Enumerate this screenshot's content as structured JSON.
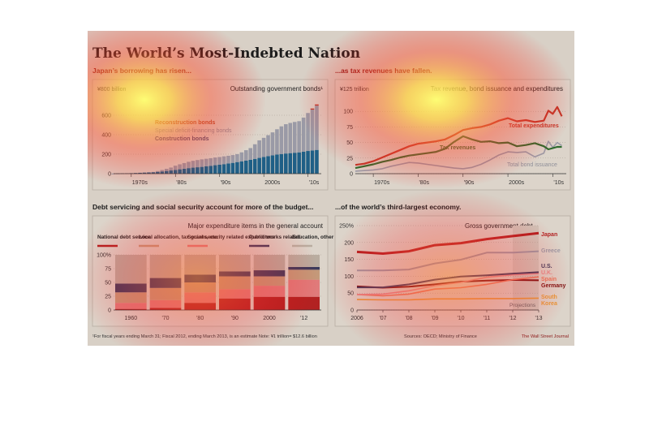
{
  "title": "The World’s Most-Indebted Nation",
  "footer": {
    "note": "¹For fiscal years ending March 31; Fiscal 2012, ending March 2013, is an estimate   Note: ¥1 trillion= $12.6 billion",
    "sources": "Sources: OECD; Ministry of Finance",
    "credit": "The Wall Street Journal"
  },
  "chart_data": [
    {
      "id": "borrowing",
      "type": "area",
      "heading": "Japan’s borrowing has risen...",
      "title": "Outstanding government bonds¹",
      "unit_label": "¥800 billion",
      "ylim": [
        0,
        800
      ],
      "yticks": [
        0,
        200,
        400,
        600
      ],
      "xlim": [
        1966,
        2013
      ],
      "xtick_labels": [
        {
          "x": 1970,
          "label": "1970s"
        },
        {
          "x": 1980,
          "label": "'80s"
        },
        {
          "x": 1990,
          "label": "'90s"
        },
        {
          "x": 2000,
          "label": "2000s"
        },
        {
          "x": 2010,
          "label": "'10s"
        }
      ],
      "x": [
        1966,
        1967,
        1968,
        1969,
        1970,
        1971,
        1972,
        1973,
        1974,
        1975,
        1976,
        1977,
        1978,
        1979,
        1980,
        1981,
        1982,
        1983,
        1984,
        1985,
        1986,
        1987,
        1988,
        1989,
        1990,
        1991,
        1992,
        1993,
        1994,
        1995,
        1996,
        1997,
        1998,
        1999,
        2000,
        2001,
        2002,
        2003,
        2004,
        2005,
        2006,
        2007,
        2008,
        2009,
        2010,
        2011,
        2012
      ],
      "series": [
        {
          "name": "Construction bonds",
          "color": "#1f5f86",
          "values": [
            1,
            2,
            3,
            4,
            5,
            7,
            9,
            11,
            13,
            16,
            19,
            23,
            28,
            33,
            39,
            45,
            51,
            57,
            62,
            66,
            70,
            75,
            81,
            87,
            92,
            98,
            104,
            111,
            119,
            127,
            135,
            143,
            152,
            162,
            172,
            180,
            188,
            196,
            202,
            207,
            211,
            215,
            219,
            226,
            233,
            238,
            244
          ]
        },
        {
          "name": "Special deficit-financing bonds",
          "color": "#9a9aa6",
          "values": [
            0,
            0,
            0,
            0,
            0,
            0,
            0,
            0,
            0,
            2,
            8,
            15,
            22,
            30,
            43,
            51,
            58,
            65,
            70,
            74,
            77,
            78,
            78,
            79,
            79,
            80,
            80,
            80,
            82,
            92,
            106,
            120,
            150,
            180,
            196,
            215,
            236,
            260,
            284,
            301,
            310,
            316,
            320,
            350,
            390,
            420,
            455
          ]
        },
        {
          "name": "Reconstruction bonds",
          "color": "#c0392b",
          "values": [
            0,
            0,
            0,
            0,
            0,
            0,
            0,
            0,
            0,
            0,
            0,
            0,
            0,
            0,
            0,
            0,
            0,
            0,
            0,
            0,
            0,
            0,
            0,
            0,
            0,
            0,
            0,
            0,
            0,
            0,
            0,
            0,
            0,
            0,
            0,
            0,
            0,
            0,
            0,
            0,
            0,
            0,
            0,
            0,
            0,
            11,
            12
          ]
        }
      ]
    },
    {
      "id": "revenues",
      "type": "line",
      "heading": "...as tax revenues have fallen.",
      "title": "Tax revenue, bond issuance and expenditures",
      "unit_label": "¥125 trillion",
      "ylim": [
        0,
        125
      ],
      "yticks": [
        0,
        25,
        50,
        75,
        100
      ],
      "xlim": [
        1966,
        2013
      ],
      "xtick_labels": [
        {
          "x": 1970,
          "label": "1970s"
        },
        {
          "x": 1980,
          "label": "'80s"
        },
        {
          "x": 1990,
          "label": "'90s"
        },
        {
          "x": 2000,
          "label": "2000s"
        },
        {
          "x": 2010,
          "label": "'10s"
        }
      ],
      "x": [
        1966,
        1968,
        1970,
        1972,
        1974,
        1976,
        1978,
        1980,
        1982,
        1984,
        1986,
        1988,
        1990,
        1992,
        1994,
        1996,
        1998,
        2000,
        2002,
        2004,
        2006,
        2008,
        2009,
        2010,
        2011,
        2012
      ],
      "series": [
        {
          "name": "Total expenditures",
          "color": "#c0392b",
          "width": 2.2,
          "values": [
            14,
            16,
            20,
            26,
            32,
            38,
            44,
            48,
            50,
            52,
            55,
            62,
            70,
            73,
            75,
            79,
            85,
            89,
            84,
            86,
            83,
            85,
            101,
            96,
            107,
            92
          ]
        },
        {
          "name": "Tax revenues",
          "color": "#2e6b2e",
          "width": 2.2,
          "values": [
            9,
            12,
            15,
            19,
            22,
            26,
            29,
            31,
            33,
            35,
            40,
            51,
            60,
            55,
            51,
            52,
            49,
            50,
            44,
            46,
            49,
            44,
            39,
            41,
            43,
            43
          ]
        },
        {
          "name": "Total bond issuance",
          "color": "#9a9aa6",
          "width": 1.6,
          "values": [
            4,
            5,
            6,
            8,
            12,
            15,
            18,
            17,
            15,
            13,
            11,
            9,
            8,
            10,
            15,
            22,
            30,
            35,
            34,
            35,
            27,
            33,
            52,
            42,
            50,
            45
          ]
        }
      ]
    },
    {
      "id": "expenditure",
      "type": "bar",
      "heading": "Debt servicing and social security account for more of the budget...",
      "title": "Major expenditure items in the general account",
      "ylim": [
        0,
        100
      ],
      "yticks": [
        0,
        25,
        50,
        75,
        100
      ],
      "ytick_labels": [
        "0",
        "25",
        "50",
        "75",
        "100%"
      ],
      "categories": [
        "1960",
        "'70",
        "'80",
        "'90",
        "2000",
        "'12"
      ],
      "series": [
        {
          "name": "National debt service",
          "color": "#b22222",
          "values": [
            2,
            4,
            13,
            21,
            24,
            24
          ]
        },
        {
          "name": "Social-security related expenditure",
          "color": "#e07b7b",
          "values": [
            11,
            14,
            19,
            17,
            20,
            31
          ]
        },
        {
          "name": "Local allocation, tax grants, etc.",
          "color": "#c49a7a",
          "values": [
            19,
            22,
            18,
            23,
            17,
            18
          ]
        },
        {
          "name": "Public works related",
          "color": "#3b3b5c",
          "values": [
            16,
            18,
            14,
            9,
            11,
            5
          ]
        },
        {
          "name": "Education, other",
          "color": "#b9ada0",
          "values": [
            52,
            42,
            36,
            30,
            28,
            22
          ]
        }
      ]
    },
    {
      "id": "gross_debt",
      "type": "line",
      "heading": "...of the world’s third-largest economy.",
      "title": "Gross government debt",
      "ylim": [
        0,
        250
      ],
      "yticks": [
        0,
        50,
        100,
        150,
        200,
        250
      ],
      "ytick_labels": [
        "0",
        "50",
        "100",
        "150",
        "200",
        "250%"
      ],
      "x": [
        2006,
        2007,
        2008,
        2009,
        2010,
        2011,
        2012,
        2013
      ],
      "xtick_labels": [
        "2006",
        "'07",
        "'08",
        "'09",
        "'10",
        "'11",
        "'12",
        "'13"
      ],
      "projection_label": "Projections",
      "series": [
        {
          "name": "Japan",
          "color": "#b22222",
          "width": 3,
          "values": [
            172,
            167,
            174,
            192,
            198,
            210,
            219,
            228
          ]
        },
        {
          "name": "Greece",
          "color": "#9a9aa6",
          "width": 2,
          "values": [
            117,
            117,
            120,
            138,
            149,
            170,
            170,
            174
          ]
        },
        {
          "name": "U.S.",
          "color": "#3b3b5c",
          "width": 2,
          "values": [
            67,
            67,
            76,
            90,
            99,
            103,
            108,
            112
          ]
        },
        {
          "name": "U.K.",
          "color": "#e58a8a",
          "width": 1.6,
          "values": [
            46,
            47,
            57,
            72,
            82,
            97,
            104,
            108
          ]
        },
        {
          "name": "Spain",
          "color": "#e77a5f",
          "width": 1.6,
          "values": [
            46,
            42,
            47,
            62,
            66,
            76,
            90,
            98
          ]
        },
        {
          "name": "Germany",
          "color": "#7a1010",
          "width": 2,
          "values": [
            70,
            66,
            69,
            76,
            84,
            87,
            89,
            88
          ]
        },
        {
          "name": "South Korea",
          "color": "#e69a3a",
          "width": 1.6,
          "values": [
            31,
            30,
            30,
            33,
            33,
            34,
            34,
            35
          ]
        }
      ]
    }
  ]
}
